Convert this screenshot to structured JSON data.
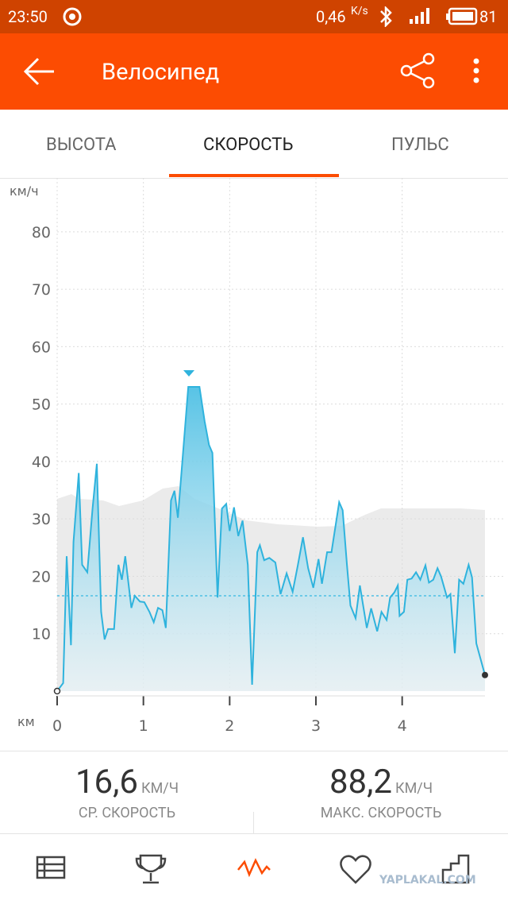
{
  "status_bar": {
    "time": "23:50",
    "net_speed": "0,46",
    "net_unit": "K/s",
    "battery": "81"
  },
  "app_bar": {
    "title": "Велосипед"
  },
  "tabs": [
    "ВЫСОТА",
    "СКОРОСТЬ",
    "ПУЛЬС"
  ],
  "chart_data": {
    "type": "line",
    "y_label": "км/ч",
    "x_label": "км",
    "color": "#2fb3dd",
    "grid": true,
    "xlim": [
      0,
      4.96
    ],
    "ylim": [
      0,
      88
    ],
    "xticks": [
      0,
      1,
      2,
      3,
      4
    ],
    "yticks": [
      10,
      20,
      30,
      40,
      50,
      60,
      70,
      80
    ],
    "x": [
      0,
      0.07,
      0.11,
      0.16,
      0.19,
      0.25,
      0.29,
      0.35,
      0.41,
      0.46,
      0.51,
      0.55,
      0.59,
      0.66,
      0.71,
      0.75,
      0.79,
      0.86,
      0.9,
      0.96,
      1.01,
      1.07,
      1.12,
      1.17,
      1.22,
      1.26,
      1.32,
      1.36,
      1.4,
      1.52,
      1.65,
      1.71,
      1.76,
      1.8,
      1.86,
      1.91,
      1.96,
      2.0,
      2.05,
      2.1,
      2.15,
      2.21,
      2.26,
      2.32,
      2.35,
      2.4,
      2.46,
      2.53,
      2.59,
      2.66,
      2.73,
      2.79,
      2.85,
      2.91,
      2.97,
      3.03,
      3.07,
      3.13,
      3.18,
      3.27,
      3.31,
      3.36,
      3.4,
      3.46,
      3.51,
      3.59,
      3.64,
      3.71,
      3.76,
      3.82,
      3.86,
      3.91,
      3.95,
      3.97,
      4.02,
      4.06,
      4.11,
      4.16,
      4.21,
      4.27,
      4.31,
      4.36,
      4.41,
      4.45,
      4.52,
      4.56,
      4.61,
      4.66,
      4.71,
      4.77,
      4.81,
      4.86,
      4.96
    ],
    "values": [
      0,
      1.4,
      23.5,
      8,
      26,
      38,
      22,
      20.7,
      31.8,
      39.6,
      13.8,
      9,
      10.8,
      10.8,
      22,
      19.4,
      23.5,
      14.5,
      16.6,
      15.6,
      15.5,
      13.8,
      12,
      14.5,
      14.1,
      11,
      33.2,
      34.9,
      30.2,
      53,
      53,
      47,
      42.9,
      41.5,
      16.3,
      31.8,
      32.6,
      27.9,
      32,
      27,
      29.7,
      22,
      1.1,
      24.2,
      25.4,
      22.8,
      23.2,
      22.4,
      16.9,
      20.5,
      17.3,
      21.9,
      26.8,
      21.4,
      18,
      23,
      18.7,
      24.2,
      24.2,
      32.9,
      31.5,
      22,
      14.9,
      12.7,
      18.4,
      11,
      14.4,
      10.4,
      13.8,
      12.4,
      16.3,
      17.2,
      18.4,
      13.1,
      13.8,
      19.4,
      19.6,
      20.7,
      19.4,
      21.9,
      18.9,
      19.4,
      21.4,
      20,
      16.3,
      16.9,
      6.6,
      19.4,
      18.7,
      22,
      19.8,
      8.3,
      2.8
    ]
  },
  "stats": [
    {
      "value": {
        "value": 16.6,
        "label": "16,6"
      },
      "unit": "КМ/Ч",
      "label": "СР. СКОРОСТЬ"
    },
    {
      "value": "88,2",
      "unit": "КМ/Ч",
      "label": "МАКС. СКОРОСТЬ"
    }
  ],
  "watermark": "YAPLAKAL.COM"
}
